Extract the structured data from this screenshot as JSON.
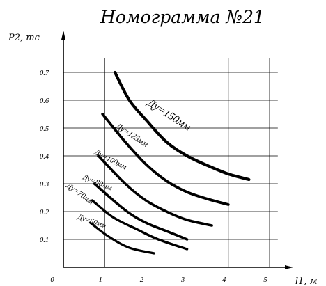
{
  "chart_data": {
    "type": "line",
    "title": "Номограмма №21",
    "xlabel": "l1, м",
    "ylabel": "P2, тс",
    "xlim": [
      0,
      5.6
    ],
    "ylim": [
      0,
      0.75
    ],
    "origin_label": "0",
    "x_ticks": [
      1,
      2,
      3,
      4,
      5
    ],
    "y_ticks": [
      0.1,
      0.2,
      0.3,
      0.4,
      0.5,
      0.6,
      0.7
    ],
    "grid": true,
    "series": [
      {
        "name": "Ду=150мм",
        "x": [
          1.25,
          1.6,
          2.0,
          2.5,
          3.0,
          3.5,
          4.0,
          4.5
        ],
        "y": [
          0.7,
          0.6,
          0.53,
          0.45,
          0.4,
          0.365,
          0.335,
          0.315
        ]
      },
      {
        "name": "Ду=125мм",
        "x": [
          0.95,
          1.5,
          2.0,
          2.5,
          3.0,
          3.5,
          4.0
        ],
        "y": [
          0.55,
          0.45,
          0.37,
          0.31,
          0.27,
          0.245,
          0.225
        ]
      },
      {
        "name": "Ду=100мм",
        "x": [
          0.85,
          1.5,
          2.0,
          2.5,
          3.0,
          3.6
        ],
        "y": [
          0.4,
          0.3,
          0.24,
          0.2,
          0.17,
          0.15
        ]
      },
      {
        "name": "Ду=80мм",
        "x": [
          0.75,
          1.5,
          2.0,
          2.5,
          3.0
        ],
        "y": [
          0.3,
          0.205,
          0.16,
          0.13,
          0.1
        ]
      },
      {
        "name": "Ду=70мм",
        "x": [
          0.7,
          1.2,
          1.8,
          2.3,
          3.0
        ],
        "y": [
          0.24,
          0.18,
          0.135,
          0.1,
          0.065
        ]
      },
      {
        "name": "Ду=50мм",
        "x": [
          0.65,
          1.1,
          1.6,
          2.2
        ],
        "y": [
          0.16,
          0.11,
          0.07,
          0.05
        ]
      }
    ]
  }
}
